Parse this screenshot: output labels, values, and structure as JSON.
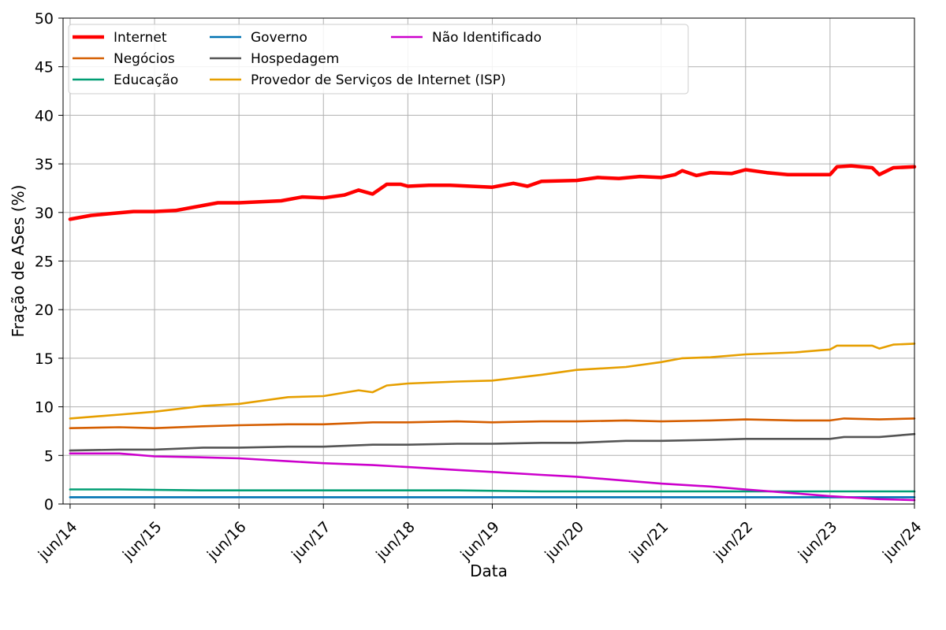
{
  "chart_data": {
    "type": "line",
    "xlabel": "Data",
    "ylabel": "Fração de ASes (%)",
    "ylim": [
      0,
      50
    ],
    "yticks": [
      0,
      5,
      10,
      15,
      20,
      25,
      30,
      35,
      40,
      45,
      50
    ],
    "xlim": [
      "2014-05",
      "2024-06"
    ],
    "xticks": [
      {
        "date": "2014-06",
        "label": "jun/14"
      },
      {
        "date": "2015-06",
        "label": "jun/15"
      },
      {
        "date": "2016-06",
        "label": "jun/16"
      },
      {
        "date": "2017-06",
        "label": "jun/17"
      },
      {
        "date": "2018-06",
        "label": "jun/18"
      },
      {
        "date": "2019-06",
        "label": "jun/19"
      },
      {
        "date": "2020-06",
        "label": "jun/20"
      },
      {
        "date": "2021-06",
        "label": "jun/21"
      },
      {
        "date": "2022-06",
        "label": "jun/22"
      },
      {
        "date": "2023-06",
        "label": "jun/23"
      },
      {
        "date": "2024-06",
        "label": "jun/24"
      }
    ],
    "grid": true,
    "legend_position": "top-left",
    "legend_columns": 3,
    "series": [
      {
        "name": "Internet",
        "color": "#ff0000",
        "width": "thick",
        "points": [
          [
            "2014-06",
            29.3
          ],
          [
            "2014-09",
            29.7
          ],
          [
            "2014-12",
            29.9
          ],
          [
            "2015-03",
            30.1
          ],
          [
            "2015-06",
            30.1
          ],
          [
            "2015-09",
            30.2
          ],
          [
            "2015-12",
            30.6
          ],
          [
            "2016-03",
            31.0
          ],
          [
            "2016-06",
            31.0
          ],
          [
            "2016-09",
            31.1
          ],
          [
            "2016-12",
            31.2
          ],
          [
            "2017-03",
            31.6
          ],
          [
            "2017-06",
            31.5
          ],
          [
            "2017-09",
            31.8
          ],
          [
            "2017-11",
            32.3
          ],
          [
            "2018-01",
            31.9
          ],
          [
            "2018-03",
            32.9
          ],
          [
            "2018-05",
            32.9
          ],
          [
            "2018-06",
            32.7
          ],
          [
            "2018-09",
            32.8
          ],
          [
            "2018-12",
            32.8
          ],
          [
            "2019-03",
            32.7
          ],
          [
            "2019-06",
            32.6
          ],
          [
            "2019-09",
            33.0
          ],
          [
            "2019-11",
            32.7
          ],
          [
            "2020-01",
            33.2
          ],
          [
            "2020-06",
            33.3
          ],
          [
            "2020-09",
            33.6
          ],
          [
            "2020-12",
            33.5
          ],
          [
            "2021-03",
            33.7
          ],
          [
            "2021-06",
            33.6
          ],
          [
            "2021-08",
            33.9
          ],
          [
            "2021-09",
            34.3
          ],
          [
            "2021-11",
            33.8
          ],
          [
            "2022-01",
            34.1
          ],
          [
            "2022-04",
            34.0
          ],
          [
            "2022-06",
            34.4
          ],
          [
            "2022-09",
            34.1
          ],
          [
            "2022-12",
            33.9
          ],
          [
            "2023-03",
            33.9
          ],
          [
            "2023-06",
            33.9
          ],
          [
            "2023-07",
            34.7
          ],
          [
            "2023-09",
            34.8
          ],
          [
            "2023-12",
            34.6
          ],
          [
            "2024-01",
            33.9
          ],
          [
            "2024-03",
            34.6
          ],
          [
            "2024-06",
            34.7
          ]
        ]
      },
      {
        "name": "Negócios",
        "color": "#d55e00",
        "width": "normal",
        "points": [
          [
            "2014-06",
            7.8
          ],
          [
            "2015-01",
            7.9
          ],
          [
            "2015-06",
            7.8
          ],
          [
            "2016-01",
            8.0
          ],
          [
            "2016-06",
            8.1
          ],
          [
            "2017-01",
            8.2
          ],
          [
            "2017-06",
            8.2
          ],
          [
            "2018-01",
            8.4
          ],
          [
            "2018-06",
            8.4
          ],
          [
            "2019-01",
            8.5
          ],
          [
            "2019-06",
            8.4
          ],
          [
            "2020-01",
            8.5
          ],
          [
            "2020-06",
            8.5
          ],
          [
            "2021-01",
            8.6
          ],
          [
            "2021-06",
            8.5
          ],
          [
            "2022-01",
            8.6
          ],
          [
            "2022-06",
            8.7
          ],
          [
            "2023-01",
            8.6
          ],
          [
            "2023-06",
            8.6
          ],
          [
            "2023-08",
            8.8
          ],
          [
            "2024-01",
            8.7
          ],
          [
            "2024-06",
            8.8
          ]
        ]
      },
      {
        "name": "Educação",
        "color": "#009e73",
        "width": "normal",
        "points": [
          [
            "2014-06",
            1.5
          ],
          [
            "2015-01",
            1.5
          ],
          [
            "2016-01",
            1.4
          ],
          [
            "2017-01",
            1.4
          ],
          [
            "2018-01",
            1.4
          ],
          [
            "2019-01",
            1.4
          ],
          [
            "2020-01",
            1.3
          ],
          [
            "2021-01",
            1.3
          ],
          [
            "2022-01",
            1.3
          ],
          [
            "2023-01",
            1.3
          ],
          [
            "2024-01",
            1.3
          ],
          [
            "2024-06",
            1.3
          ]
        ]
      },
      {
        "name": "Governo",
        "color": "#0072b2",
        "width": "normal",
        "points": [
          [
            "2014-06",
            0.7
          ],
          [
            "2015-06",
            0.7
          ],
          [
            "2016-06",
            0.7
          ],
          [
            "2017-06",
            0.7
          ],
          [
            "2018-06",
            0.7
          ],
          [
            "2019-06",
            0.7
          ],
          [
            "2020-06",
            0.7
          ],
          [
            "2021-06",
            0.7
          ],
          [
            "2022-06",
            0.7
          ],
          [
            "2023-06",
            0.7
          ],
          [
            "2024-06",
            0.7
          ]
        ]
      },
      {
        "name": "Hospedagem",
        "color": "#555555",
        "width": "normal",
        "points": [
          [
            "2014-06",
            5.5
          ],
          [
            "2015-01",
            5.6
          ],
          [
            "2015-06",
            5.6
          ],
          [
            "2016-01",
            5.8
          ],
          [
            "2016-06",
            5.8
          ],
          [
            "2017-01",
            5.9
          ],
          [
            "2017-06",
            5.9
          ],
          [
            "2018-01",
            6.1
          ],
          [
            "2018-06",
            6.1
          ],
          [
            "2019-01",
            6.2
          ],
          [
            "2019-06",
            6.2
          ],
          [
            "2020-01",
            6.3
          ],
          [
            "2020-06",
            6.3
          ],
          [
            "2021-01",
            6.5
          ],
          [
            "2021-06",
            6.5
          ],
          [
            "2022-01",
            6.6
          ],
          [
            "2022-06",
            6.7
          ],
          [
            "2023-01",
            6.7
          ],
          [
            "2023-06",
            6.7
          ],
          [
            "2023-08",
            6.9
          ],
          [
            "2024-01",
            6.9
          ],
          [
            "2024-06",
            7.2
          ]
        ]
      },
      {
        "name": "Não Identificado",
        "color": "#cc00cc",
        "width": "normal",
        "points": [
          [
            "2014-06",
            5.2
          ],
          [
            "2015-01",
            5.2
          ],
          [
            "2015-06",
            4.9
          ],
          [
            "2016-01",
            4.8
          ],
          [
            "2016-06",
            4.7
          ],
          [
            "2017-01",
            4.4
          ],
          [
            "2017-06",
            4.2
          ],
          [
            "2018-01",
            4.0
          ],
          [
            "2018-06",
            3.8
          ],
          [
            "2019-01",
            3.5
          ],
          [
            "2019-06",
            3.3
          ],
          [
            "2020-01",
            3.0
          ],
          [
            "2020-06",
            2.8
          ],
          [
            "2021-01",
            2.4
          ],
          [
            "2021-06",
            2.1
          ],
          [
            "2022-01",
            1.8
          ],
          [
            "2022-06",
            1.5
          ],
          [
            "2023-01",
            1.1
          ],
          [
            "2023-06",
            0.8
          ],
          [
            "2024-01",
            0.5
          ],
          [
            "2024-06",
            0.4
          ]
        ]
      },
      {
        "name": "Provedor de Serviços de Internet (ISP)",
        "color": "#e69f00",
        "width": "normal",
        "points": [
          [
            "2014-06",
            8.8
          ],
          [
            "2015-01",
            9.2
          ],
          [
            "2015-06",
            9.5
          ],
          [
            "2016-01",
            10.1
          ],
          [
            "2016-06",
            10.3
          ],
          [
            "2017-01",
            11.0
          ],
          [
            "2017-06",
            11.1
          ],
          [
            "2017-11",
            11.7
          ],
          [
            "2018-01",
            11.5
          ],
          [
            "2018-03",
            12.2
          ],
          [
            "2018-06",
            12.4
          ],
          [
            "2019-01",
            12.6
          ],
          [
            "2019-06",
            12.7
          ],
          [
            "2020-01",
            13.3
          ],
          [
            "2020-06",
            13.8
          ],
          [
            "2021-01",
            14.1
          ],
          [
            "2021-06",
            14.6
          ],
          [
            "2021-09",
            15.0
          ],
          [
            "2022-01",
            15.1
          ],
          [
            "2022-06",
            15.4
          ],
          [
            "2023-01",
            15.6
          ],
          [
            "2023-06",
            15.9
          ],
          [
            "2023-07",
            16.3
          ],
          [
            "2023-12",
            16.3
          ],
          [
            "2024-01",
            16.0
          ],
          [
            "2024-03",
            16.4
          ],
          [
            "2024-06",
            16.5
          ]
        ]
      }
    ],
    "legend_order": [
      "Internet",
      "Negócios",
      "Educação",
      "Governo",
      "Hospedagem",
      "Provedor de Serviços de Internet (ISP)",
      "Não Identificado"
    ]
  }
}
